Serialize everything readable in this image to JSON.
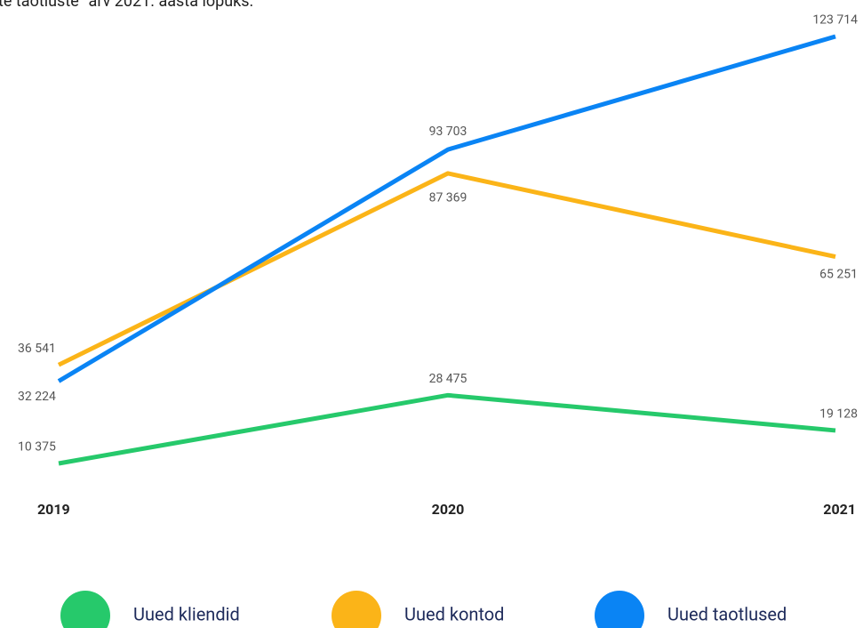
{
  "chart_data": {
    "type": "line",
    "title": "te taotluste” arv 2021. aasta lõpuks.",
    "categories": [
      "2019",
      "2020",
      "2021"
    ],
    "series": [
      {
        "name": "Uued kliendid",
        "color": "#26c96b",
        "values": [
          10375,
          28475,
          19128
        ],
        "value_labels": [
          "10 375",
          "28 475",
          "19 128"
        ]
      },
      {
        "name": "Uued kontod",
        "color": "#fbb418",
        "values": [
          36541,
          87369,
          65251
        ],
        "value_labels": [
          "36 541",
          "87 369",
          "65 251"
        ]
      },
      {
        "name": "Uued taotlused",
        "color": "#0a84f4",
        "values": [
          32224,
          93703,
          123714
        ],
        "value_labels": [
          "32 224",
          "93 703",
          "123 714"
        ]
      }
    ]
  }
}
